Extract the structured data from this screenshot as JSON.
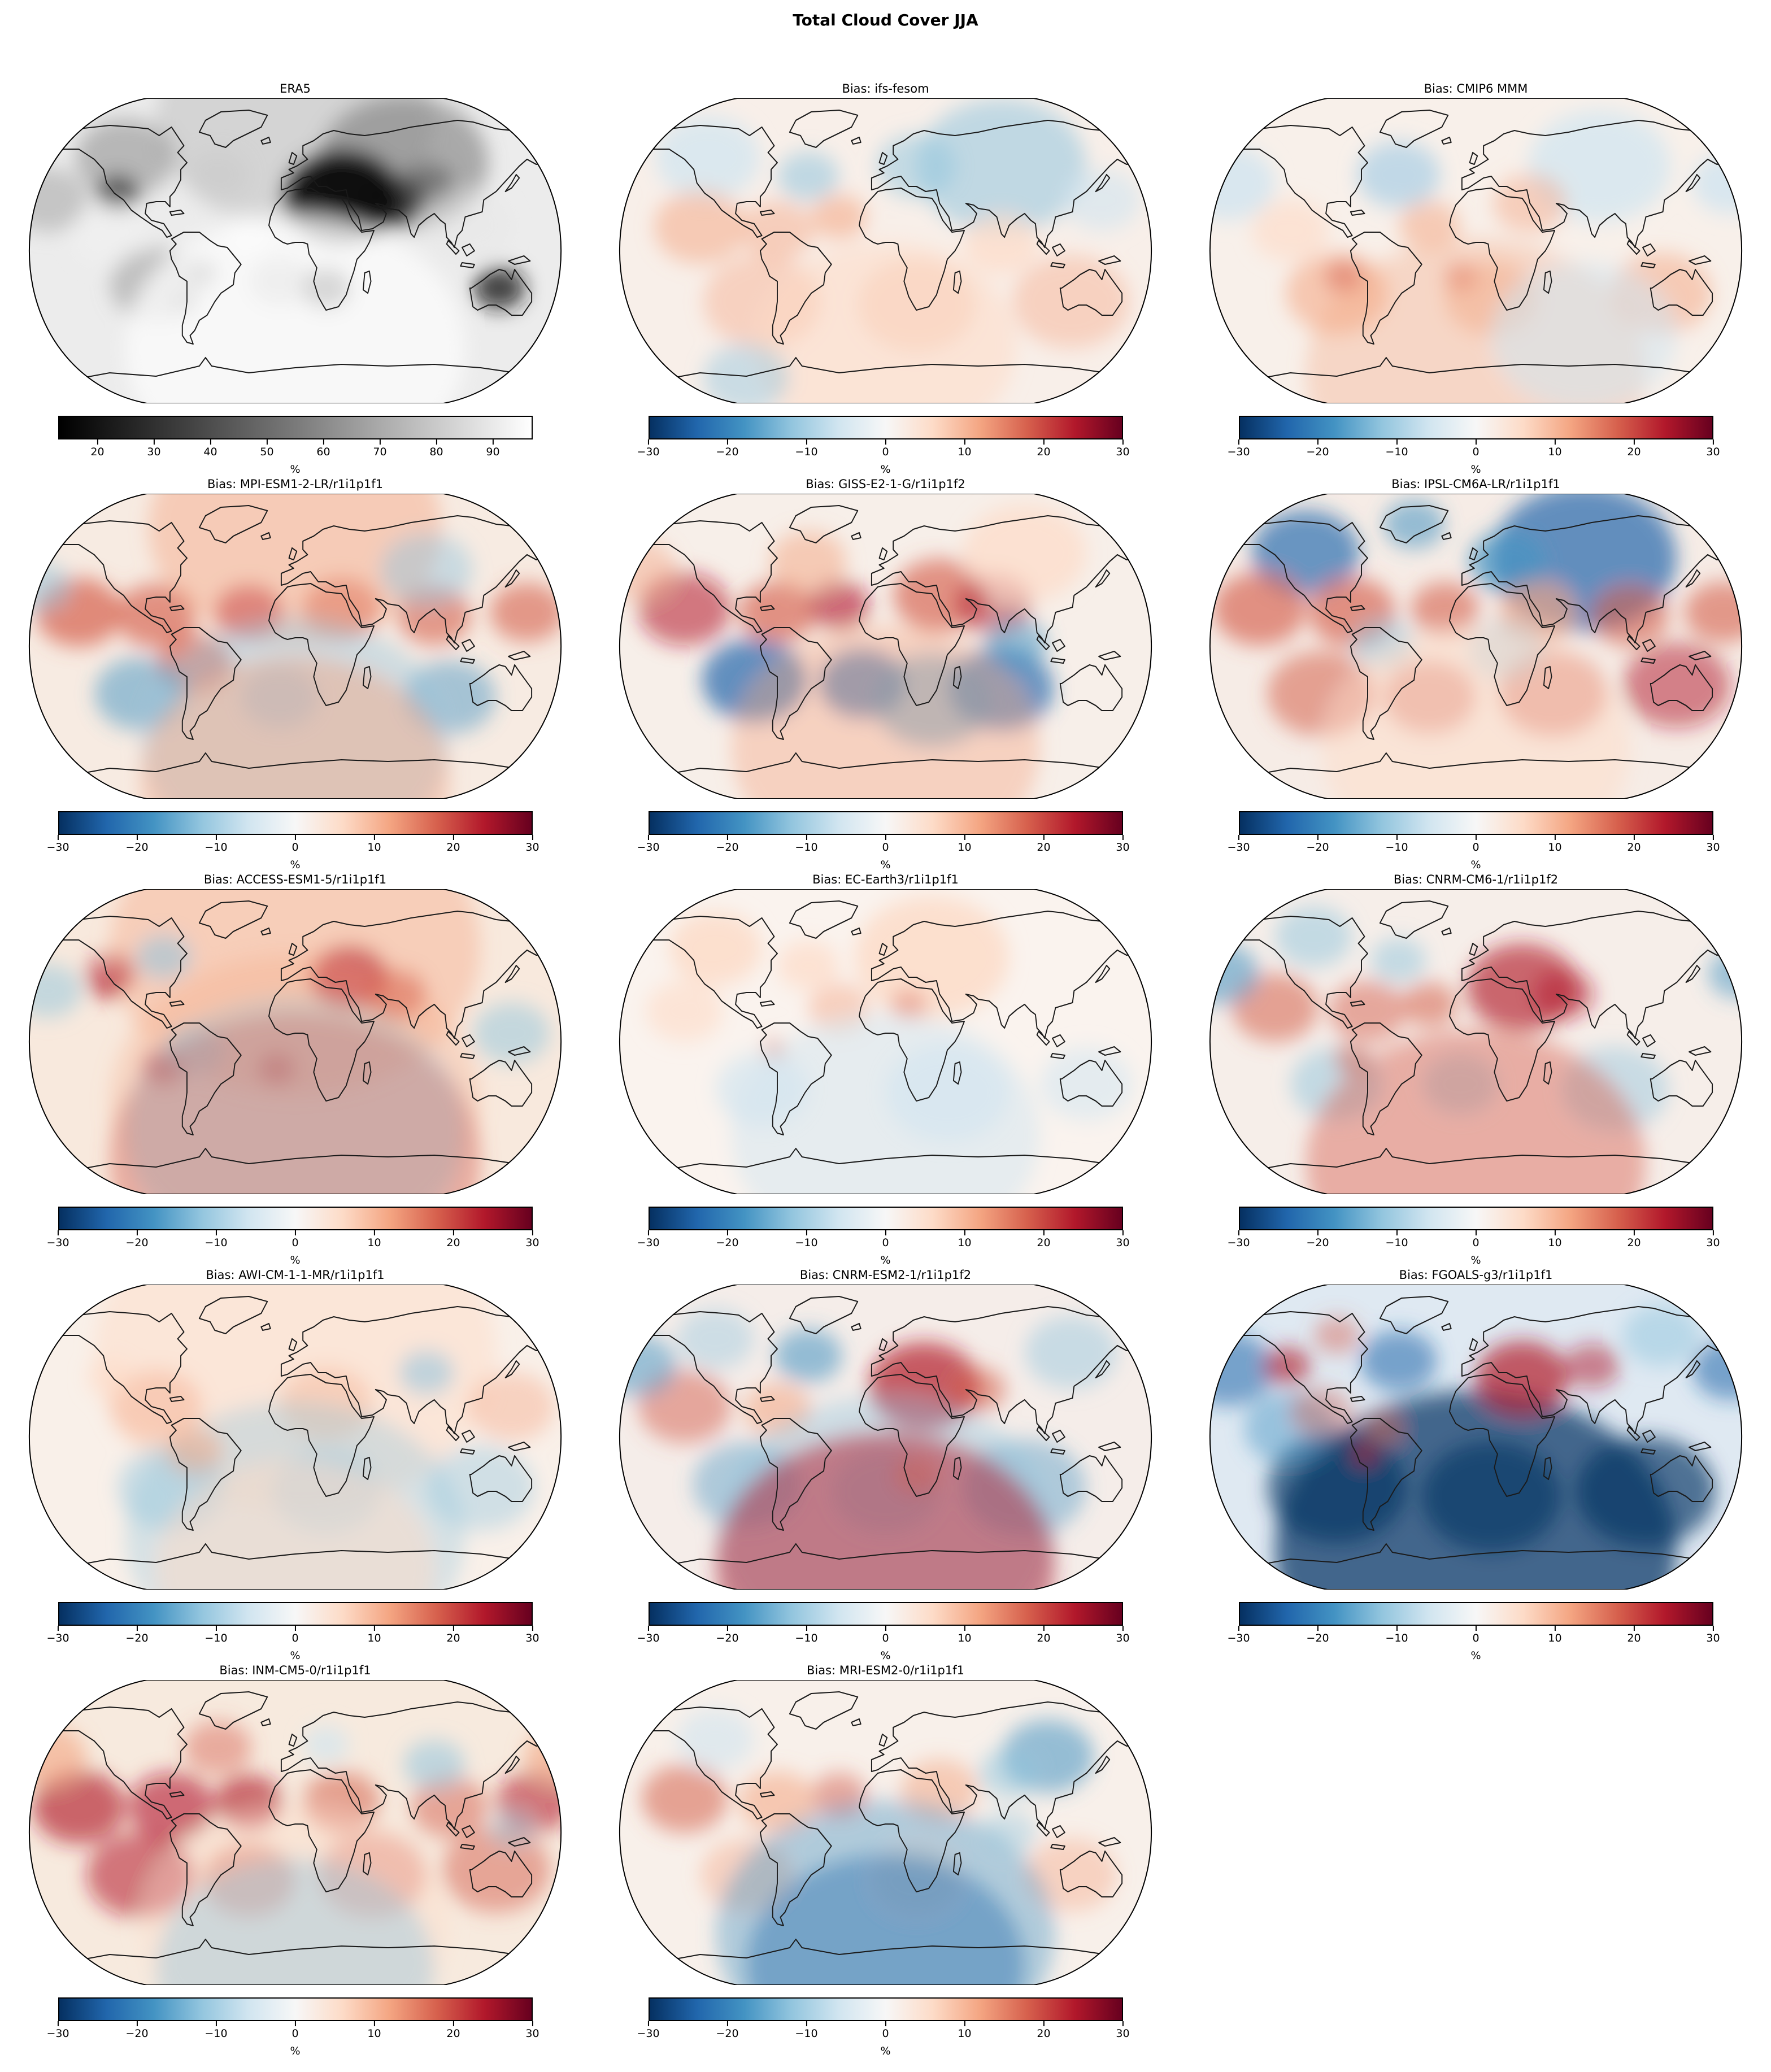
{
  "figure": {
    "title": "Total Cloud Cover JJA"
  },
  "chart_data": {
    "type": "heatmap",
    "title": "Total Cloud Cover JJA",
    "projection": "robinson-world-maps",
    "layout": "5 rows x 3 columns, 14 panels",
    "colorbars": {
      "reference": {
        "ticks": [
          20,
          30,
          40,
          50,
          60,
          70,
          80,
          90
        ],
        "tick_labels": [
          "20",
          "30",
          "40",
          "50",
          "60",
          "70",
          "80",
          "90"
        ],
        "range": [
          13,
          97
        ],
        "unit": "%",
        "colors": [
          "#000000",
          "#3c3c3c",
          "#7a7a7a",
          "#bdbdbd",
          "#ffffff"
        ]
      },
      "bias": {
        "ticks": [
          -30,
          -20,
          -10,
          0,
          10,
          20,
          30
        ],
        "tick_labels": [
          "−30",
          "−20",
          "−10",
          "0",
          "10",
          "20",
          "30"
        ],
        "range": [
          -30,
          30
        ],
        "unit": "%",
        "colors": [
          "#053061",
          "#2166ac",
          "#4393c3",
          "#92c5de",
          "#d1e5f0",
          "#f7f7f7",
          "#fddbc7",
          "#f4a582",
          "#d6604d",
          "#b2182b",
          "#67001f"
        ]
      }
    },
    "panels": [
      {
        "id": "era5",
        "title": "ERA5",
        "colorbar": "reference"
      },
      {
        "id": "ifs-fesom",
        "title": "Bias: ifs-fesom",
        "colorbar": "bias"
      },
      {
        "id": "cmip6-mmm",
        "title": "Bias: CMIP6 MMM",
        "colorbar": "bias"
      },
      {
        "id": "mpi-esm1-2-lr",
        "title": "Bias: MPI-ESM1-2-LR/r1i1p1f1",
        "colorbar": "bias"
      },
      {
        "id": "giss-e2-1-g",
        "title": "Bias: GISS-E2-1-G/r1i1p1f2",
        "colorbar": "bias"
      },
      {
        "id": "ipsl-cm6a-lr",
        "title": "Bias: IPSL-CM6A-LR/r1i1p1f1",
        "colorbar": "bias"
      },
      {
        "id": "access-esm1-5",
        "title": "Bias: ACCESS-ESM1-5/r1i1p1f1",
        "colorbar": "bias"
      },
      {
        "id": "ec-earth3",
        "title": "Bias: EC-Earth3/r1i1p1f1",
        "colorbar": "bias"
      },
      {
        "id": "cnrm-cm6-1",
        "title": "Bias: CNRM-CM6-1/r1i1p1f2",
        "colorbar": "bias"
      },
      {
        "id": "awi-cm-1-1-mr",
        "title": "Bias: AWI-CM-1-1-MR/r1i1p1f1",
        "colorbar": "bias"
      },
      {
        "id": "cnrm-esm2-1",
        "title": "Bias: CNRM-ESM2-1/r1i1p1f2",
        "colorbar": "bias"
      },
      {
        "id": "fgoals-g3",
        "title": "Bias: FGOALS-g3/r1i1p1f1",
        "colorbar": "bias"
      },
      {
        "id": "inm-cm5-0",
        "title": "Bias: INM-CM5-0/r1i1p1f1",
        "colorbar": "bias"
      },
      {
        "id": "mri-esm2-0",
        "title": "Bias: MRI-ESM2-0/r1i1p1f1",
        "colorbar": "bias"
      }
    ]
  }
}
